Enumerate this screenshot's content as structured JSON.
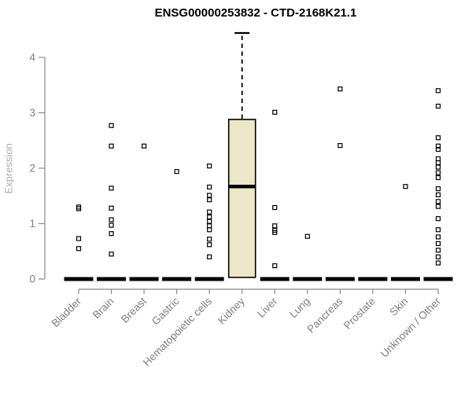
{
  "chart_data": {
    "type": "boxplot",
    "title": "ENSG00000253832 - CTD-2168K21.1",
    "ylabel": "Expression",
    "xlabel": "",
    "ylim": [
      0,
      4.44
    ],
    "yticks": [
      0,
      1,
      2,
      3,
      4
    ],
    "grid": false,
    "legend": "none",
    "categories": [
      "Bladder",
      "Brain",
      "Breast",
      "Gastric",
      "Hematopoietic cells",
      "Kidney",
      "Liver",
      "Lung",
      "Pancreas",
      "Prostate",
      "Skin",
      "Unknown / Other"
    ],
    "boxes": [
      {
        "category": "Bladder",
        "q1": 0,
        "median": 0,
        "q3": 0,
        "whisker_low": 0,
        "whisker_high": 0,
        "outliers": [
          1.3,
          1.27,
          0.73,
          0.55
        ]
      },
      {
        "category": "Brain",
        "q1": 0,
        "median": 0,
        "q3": 0,
        "whisker_low": 0,
        "whisker_high": 0,
        "outliers": [
          2.77,
          2.4,
          1.64,
          1.28,
          1.07,
          0.97,
          0.82,
          0.45
        ]
      },
      {
        "category": "Breast",
        "q1": 0,
        "median": 0,
        "q3": 0,
        "whisker_low": 0,
        "whisker_high": 0,
        "outliers": [
          2.4
        ]
      },
      {
        "category": "Gastric",
        "q1": 0,
        "median": 0,
        "q3": 0,
        "whisker_low": 0,
        "whisker_high": 0,
        "outliers": [
          1.94
        ]
      },
      {
        "category": "Hematopoietic cells",
        "q1": 0,
        "median": 0,
        "q3": 0,
        "whisker_low": 0,
        "whisker_high": 0,
        "outliers": [
          2.04,
          1.66,
          1.51,
          1.43,
          1.21,
          1.12,
          1.04,
          0.96,
          0.89,
          0.72,
          0.62,
          0.4
        ]
      },
      {
        "category": "Kidney",
        "q1": 0.03,
        "median": 1.67,
        "q3": 2.88,
        "whisker_low": 0,
        "whisker_high": 4.44,
        "outliers": []
      },
      {
        "category": "Liver",
        "q1": 0,
        "median": 0,
        "q3": 0,
        "whisker_low": 0,
        "whisker_high": 0,
        "outliers": [
          3.01,
          1.29,
          0.96,
          0.88,
          0.84,
          0.24
        ]
      },
      {
        "category": "Lung",
        "q1": 0,
        "median": 0,
        "q3": 0,
        "whisker_low": 0,
        "whisker_high": 0,
        "outliers": [
          0.77
        ]
      },
      {
        "category": "Pancreas",
        "q1": 0,
        "median": 0,
        "q3": 0,
        "whisker_low": 0,
        "whisker_high": 0,
        "outliers": [
          3.43,
          2.41
        ]
      },
      {
        "category": "Prostate",
        "q1": 0,
        "median": 0,
        "q3": 0,
        "whisker_low": 0,
        "whisker_high": 0,
        "outliers": []
      },
      {
        "category": "Skin",
        "q1": 0,
        "median": 0,
        "q3": 0,
        "whisker_low": 0,
        "whisker_high": 0,
        "outliers": [
          1.67
        ]
      },
      {
        "category": "Unknown / Other",
        "q1": 0,
        "median": 0,
        "q3": 0,
        "whisker_low": 0,
        "whisker_high": 0,
        "outliers": [
          3.4,
          3.12,
          2.55,
          2.4,
          2.34,
          2.17,
          2.1,
          2.02,
          1.92,
          1.83,
          1.63,
          1.52,
          1.4,
          1.31,
          1.09,
          0.89,
          0.76,
          0.64,
          0.52,
          0.4,
          0.29
        ]
      }
    ],
    "colors": {
      "box_fill": "#EDE7C9",
      "box_border": "#000000",
      "median": "#000000",
      "zero_bar": "#000000",
      "outlier": "#000000",
      "axis": "#888888",
      "tick_label": "#7E7E7E",
      "axis_title": "#A9A9A9",
      "title": "#000000",
      "background": "#FFFFFF"
    }
  }
}
